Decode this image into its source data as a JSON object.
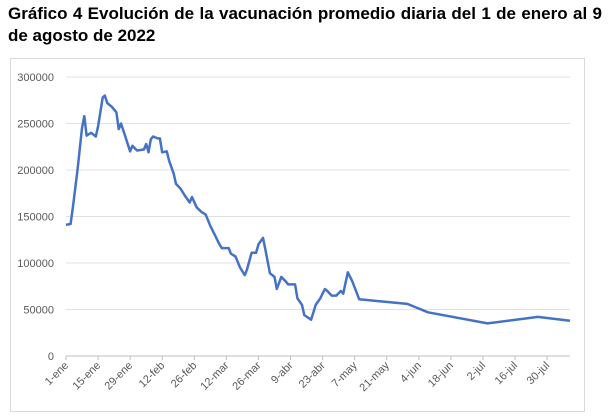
{
  "chart_data": {
    "type": "line",
    "title": "Gráfico 4 Evolución de la vacunación promedio diaria del 1 de enero al 9 de agosto de 2022",
    "x": [
      "1-ene",
      "3-ene",
      "4-ene",
      "6-ene",
      "8-ene",
      "9-ene",
      "10-ene",
      "12-ene",
      "14-ene",
      "15-ene",
      "17-ene",
      "18-ene",
      "19-ene",
      "21-ene",
      "23-ene",
      "24-ene",
      "25-ene",
      "27-ene",
      "29-ene",
      "30-ene",
      "1-feb",
      "4-feb",
      "5-feb",
      "6-feb",
      "7-feb",
      "8-feb",
      "10-feb",
      "11-feb",
      "12-feb",
      "14-feb",
      "15-feb",
      "17-feb",
      "18-feb",
      "20-feb",
      "22-feb",
      "24-feb",
      "25-feb",
      "27-feb",
      "1-mar",
      "3-mar",
      "5-mar",
      "7-mar",
      "9-mar",
      "10-mar",
      "13-mar",
      "14-mar",
      "16-mar",
      "18-mar",
      "20-mar",
      "21-mar",
      "23-mar",
      "25-mar",
      "26-mar",
      "28-mar",
      "29-mar",
      "31-mar",
      "2-abr",
      "3-abr",
      "5-abr",
      "7-abr",
      "8-abr",
      "11-abr",
      "12-abr",
      "14-abr",
      "15-abr",
      "18-abr",
      "20-abr",
      "22-abr",
      "24-abr",
      "25-abr",
      "27-abr",
      "29-abr",
      "1-may",
      "2-may",
      "4-may",
      "6-may",
      "9-may",
      "30-may",
      "8-jun",
      "4-jul",
      "26-jul",
      "9-ago"
    ],
    "series": [
      {
        "name": "Vacunación promedio diaria",
        "color": "#4472c4",
        "values": [
          141000,
          142000,
          160000,
          200000,
          245000,
          258000,
          237000,
          240000,
          236000,
          247000,
          278000,
          280000,
          272000,
          268000,
          262000,
          244000,
          250000,
          235000,
          220000,
          226000,
          221000,
          222000,
          228000,
          219000,
          233000,
          236000,
          234000,
          234000,
          219000,
          220000,
          210000,
          196000,
          185000,
          180000,
          172000,
          165000,
          171000,
          160000,
          155000,
          152000,
          140000,
          130000,
          120000,
          116000,
          116000,
          110000,
          107000,
          95000,
          87000,
          93000,
          111000,
          111000,
          120000,
          127000,
          115000,
          89000,
          85000,
          72000,
          85000,
          80000,
          77000,
          77000,
          62000,
          55000,
          44000,
          39000,
          55000,
          62000,
          72000,
          70000,
          65000,
          65000,
          70000,
          67000,
          90000,
          80000,
          61000,
          56000,
          47000,
          35000,
          42000,
          38000
        ]
      }
    ],
    "xlim": [
      "1-ene",
      "9-ago"
    ],
    "xticks": [
      "1-ene",
      "15-ene",
      "29-ene",
      "12-feb",
      "26-feb",
      "12-mar",
      "26-mar",
      "9-abr",
      "23-abr",
      "7-may",
      "21-may",
      "4-jun",
      "18-jun",
      "2-jul",
      "16-jul",
      "30-jul"
    ],
    "ylim": [
      0,
      300000
    ],
    "yticks": [
      0,
      50000,
      100000,
      150000,
      200000,
      250000,
      300000
    ],
    "grid": true
  }
}
